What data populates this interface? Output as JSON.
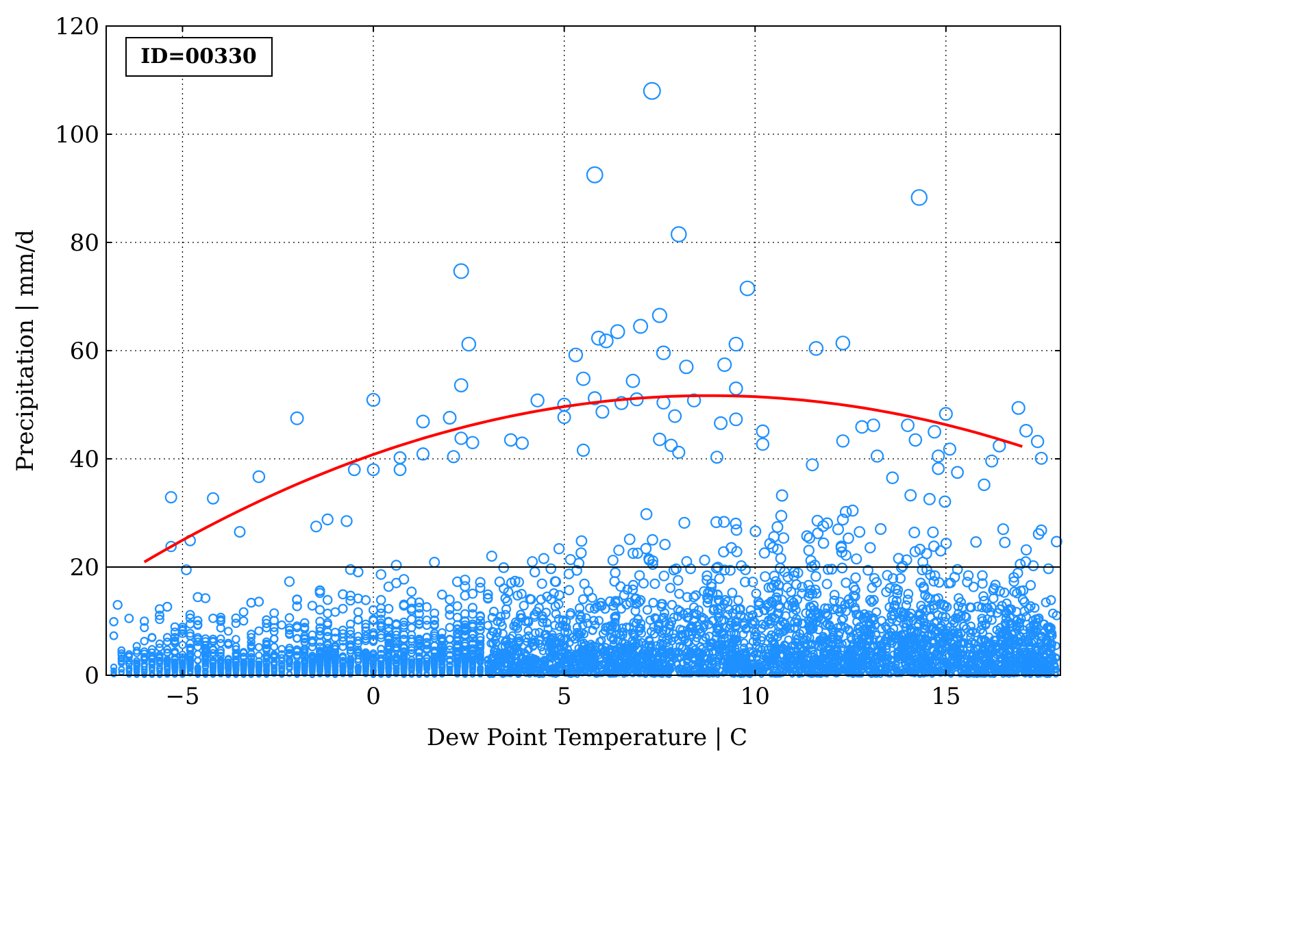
{
  "chart_data": {
    "type": "scatter",
    "annotation": "ID=00330",
    "xlabel": "Dew Point Temperature | C",
    "ylabel": "Precipitation | mm/d",
    "xlim": [
      -7,
      18
    ],
    "ylim": [
      0,
      120
    ],
    "xticks": [
      -5,
      0,
      5,
      10,
      15
    ],
    "xtick_labels": [
      "−5",
      "0",
      "5",
      "10",
      "15"
    ],
    "yticks": [
      0,
      20,
      40,
      60,
      80,
      100,
      120
    ],
    "ytick_labels": [
      "0",
      "20",
      "40",
      "60",
      "80",
      "100",
      "120"
    ],
    "grid": true,
    "reference_line_y": 20,
    "marker_color": "#1e90ff",
    "curve_color": "#ff0000",
    "notable_points": [
      {
        "x": 7.3,
        "y": 108
      },
      {
        "x": 5.8,
        "y": 92.5
      },
      {
        "x": 14.3,
        "y": 88.3
      },
      {
        "x": 8.0,
        "y": 81.5
      },
      {
        "x": 2.3,
        "y": 74.7
      },
      {
        "x": 9.8,
        "y": 71.5
      },
      {
        "x": 7.5,
        "y": 66.5
      },
      {
        "x": 7.0,
        "y": 64.5
      },
      {
        "x": 6.4,
        "y": 63.5
      },
      {
        "x": 5.9,
        "y": 62.3
      },
      {
        "x": 6.1,
        "y": 61.8
      },
      {
        "x": 2.5,
        "y": 61.2
      },
      {
        "x": 12.3,
        "y": 61.4
      },
      {
        "x": 9.5,
        "y": 61.2
      },
      {
        "x": 11.6,
        "y": 60.4
      },
      {
        "x": 7.6,
        "y": 59.6
      },
      {
        "x": 5.3,
        "y": 59.2
      },
      {
        "x": 9.2,
        "y": 57.4
      },
      {
        "x": 8.2,
        "y": 57.0
      },
      {
        "x": 5.5,
        "y": 54.8
      },
      {
        "x": 6.8,
        "y": 54.4
      },
      {
        "x": 2.3,
        "y": 53.6
      },
      {
        "x": 9.5,
        "y": 53.0
      },
      {
        "x": 5.8,
        "y": 51.2
      },
      {
        "x": 0.0,
        "y": 50.9
      },
      {
        "x": 4.3,
        "y": 50.8
      },
      {
        "x": 5.0,
        "y": 50.0
      },
      {
        "x": 7.6,
        "y": 50.4
      },
      {
        "x": 6.5,
        "y": 50.3
      },
      {
        "x": 8.4,
        "y": 50.8
      },
      {
        "x": 6.9,
        "y": 51.0
      },
      {
        "x": 16.9,
        "y": 49.4
      },
      {
        "x": 6.0,
        "y": 48.7
      },
      {
        "x": 15.0,
        "y": 48.3
      },
      {
        "x": 7.9,
        "y": 47.9
      },
      {
        "x": -2.0,
        "y": 47.5
      },
      {
        "x": 2.0,
        "y": 47.6
      },
      {
        "x": 9.5,
        "y": 47.3
      },
      {
        "x": 5.0,
        "y": 47.7
      },
      {
        "x": 1.3,
        "y": 46.9
      },
      {
        "x": 9.1,
        "y": 46.6
      },
      {
        "x": 14.0,
        "y": 46.2
      },
      {
        "x": 13.1,
        "y": 46.2
      },
      {
        "x": 12.8,
        "y": 45.9
      },
      {
        "x": 17.1,
        "y": 45.2
      },
      {
        "x": 14.7,
        "y": 45.0
      },
      {
        "x": 10.2,
        "y": 45.1
      },
      {
        "x": 2.3,
        "y": 43.8
      },
      {
        "x": 7.5,
        "y": 43.6
      },
      {
        "x": 3.6,
        "y": 43.5
      },
      {
        "x": 14.2,
        "y": 43.5
      },
      {
        "x": 17.4,
        "y": 43.2
      },
      {
        "x": 12.3,
        "y": 43.3
      },
      {
        "x": 2.6,
        "y": 43.0
      },
      {
        "x": 3.9,
        "y": 42.9
      },
      {
        "x": 10.2,
        "y": 42.7
      },
      {
        "x": 16.4,
        "y": 42.4
      },
      {
        "x": 7.8,
        "y": 42.5
      },
      {
        "x": 5.5,
        "y": 41.6
      },
      {
        "x": 8.0,
        "y": 41.2
      },
      {
        "x": 1.3,
        "y": 40.9
      },
      {
        "x": 15.1,
        "y": 41.8
      },
      {
        "x": 9.0,
        "y": 40.3
      },
      {
        "x": 13.2,
        "y": 40.5
      },
      {
        "x": 2.1,
        "y": 40.4
      },
      {
        "x": 0.7,
        "y": 40.2
      },
      {
        "x": 17.5,
        "y": 40.1
      },
      {
        "x": 14.8,
        "y": 40.5
      },
      {
        "x": 16.2,
        "y": 39.6
      },
      {
        "x": 0.0,
        "y": 38.0
      },
      {
        "x": -0.5,
        "y": 38.0
      },
      {
        "x": 0.7,
        "y": 38.0
      },
      {
        "x": 11.5,
        "y": 38.9
      },
      {
        "x": 14.8,
        "y": 38.2
      },
      {
        "x": -3.0,
        "y": 36.7
      },
      {
        "x": 13.6,
        "y": 36.5
      },
      {
        "x": -5.3,
        "y": 32.9
      },
      {
        "x": -4.2,
        "y": 32.7
      },
      {
        "x": -5.3,
        "y": 23.8
      },
      {
        "x": -3.5,
        "y": 26.5
      },
      {
        "x": -4.8,
        "y": 24.9
      },
      {
        "x": -1.5,
        "y": 27.5
      },
      {
        "x": -1.2,
        "y": 28.8
      },
      {
        "x": -0.7,
        "y": 28.5
      },
      {
        "x": 17.9,
        "y": 24.7
      },
      {
        "x": 17.5,
        "y": 26.8
      },
      {
        "x": 16.5,
        "y": 27.0
      },
      {
        "x": 16.0,
        "y": 35.2
      },
      {
        "x": 15.3,
        "y": 37.5
      },
      {
        "x": -4.9,
        "y": 19.5
      },
      {
        "x": -6.7,
        "y": 13.0
      },
      {
        "x": -6.4,
        "y": 10.5
      }
    ],
    "bulk_point_count": 4800,
    "fit_curve": {
      "type": "quadratic",
      "x_range": [
        -6,
        17
      ],
      "points": [
        {
          "x": -6,
          "y": 20.9
        },
        {
          "x": 0,
          "y": 40.9
        },
        {
          "x": 9,
          "y": 51.6
        },
        {
          "x": 17,
          "y": 42.3
        }
      ]
    }
  }
}
